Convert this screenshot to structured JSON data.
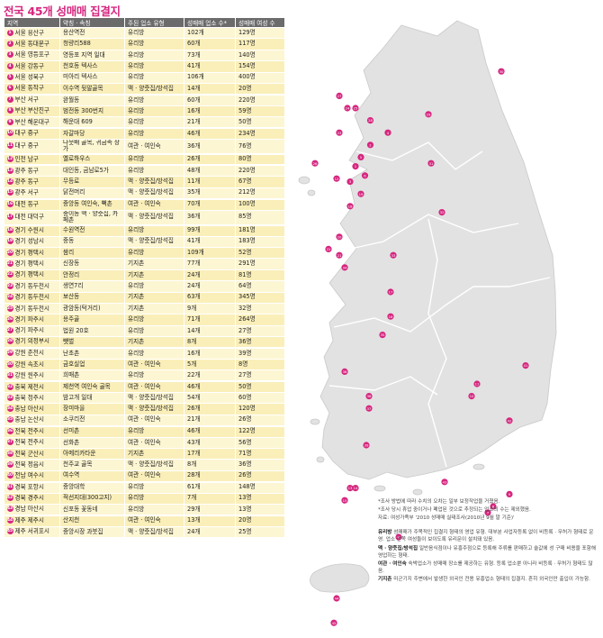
{
  "title": "전국 45개 성매매 집결지",
  "headers": [
    "지역",
    "약칭 · 속칭",
    "주된 업소 유형",
    "성매매 업소 수*",
    "성매매 여성 수"
  ],
  "rows": [
    [
      "1",
      "서울 용산구",
      "용산역전",
      "유리방",
      "102개",
      "129명"
    ],
    [
      "2",
      "서울 동대문구",
      "청량리588",
      "유리방",
      "60개",
      "117명"
    ],
    [
      "3",
      "서울 영등포구",
      "영등포 지역 일대",
      "유리방",
      "73개",
      "140명"
    ],
    [
      "4",
      "서울 강동구",
      "천호동 텍사스",
      "유리방",
      "41개",
      "154명"
    ],
    [
      "5",
      "서울 성북구",
      "미아리 텍사스",
      "유리방",
      "106개",
      "400명"
    ],
    [
      "6",
      "서울 동작구",
      "이수역 뒷말골목",
      "맥 · 양줏집/방석집",
      "14개",
      "20명"
    ],
    [
      "7",
      "부산 서구",
      "완월동",
      "유리방",
      "60개",
      "220명"
    ],
    [
      "8",
      "부산 부산진구",
      "범전동 300번지",
      "유리방",
      "16개",
      "59명"
    ],
    [
      "9",
      "부산 해운대구",
      "해운대 609",
      "유리방",
      "21개",
      "50명"
    ],
    [
      "10",
      "대구 중구",
      "자갈마당",
      "유리방",
      "46개",
      "234명"
    ],
    [
      "11",
      "대구 중구",
      "나뭇배 골목, 귀금속 상가",
      "여관 · 여인숙",
      "36개",
      "76명"
    ],
    [
      "12",
      "인천 남구",
      "옐로하우스",
      "유리방",
      "26개",
      "80명"
    ],
    [
      "13",
      "광주 동구",
      "대인동, 금남로5가",
      "유리방",
      "48개",
      "220명"
    ],
    [
      "14",
      "광주 동구",
      "무등로",
      "맥 · 양줏집/방석집",
      "11개",
      "67명"
    ],
    [
      "15",
      "광주 서구",
      "닭전머리",
      "맥 · 양줏집/방석집",
      "35개",
      "212명"
    ],
    [
      "16",
      "대전 동구",
      "중앙동 여인숙, 뻑촌",
      "여관 · 여인숙",
      "70개",
      "100명"
    ],
    [
      "17",
      "대전 대덕구",
      "중이동 맥 · 양줏집, 카페촌",
      "맥 · 양줏집/방석집",
      "36개",
      "85명"
    ],
    [
      "18",
      "경기 수원시",
      "수원역전",
      "유리방",
      "99개",
      "181명"
    ],
    [
      "19",
      "경기 성남시",
      "중동",
      "맥 · 양줏집/방석집",
      "41개",
      "183명"
    ],
    [
      "20",
      "경기 평택시",
      "쌈리",
      "유리방",
      "109개",
      "52명"
    ],
    [
      "21",
      "경기 평택시",
      "신장동",
      "기지촌",
      "77개",
      "291명"
    ],
    [
      "22",
      "경기 평택시",
      "안정리",
      "기지촌",
      "24개",
      "81명"
    ],
    [
      "23",
      "경기 동두천시",
      "생연7리",
      "유리방",
      "24개",
      "64명"
    ],
    [
      "24",
      "경기 동두천시",
      "보산동",
      "기지촌",
      "63개",
      "345명"
    ],
    [
      "25",
      "경기 동두천시",
      "광암동(턱거리)",
      "기지촌",
      "9개",
      "32명"
    ],
    [
      "26",
      "경기 파주시",
      "용주골",
      "유리방",
      "71개",
      "264명"
    ],
    [
      "27",
      "경기 파주시",
      "법원 20호",
      "유리방",
      "14개",
      "27명"
    ],
    [
      "28",
      "경기 의정부시",
      "뺏벌",
      "기지촌",
      "8개",
      "36명"
    ],
    [
      "29",
      "강원 춘천시",
      "난초촌",
      "유리방",
      "16개",
      "39명"
    ],
    [
      "30",
      "강원 속초시",
      "금호실업",
      "여관 · 여인숙",
      "5개",
      "8명"
    ],
    [
      "31",
      "강원 원주시",
      "희매촌",
      "유리방",
      "22개",
      "27명"
    ],
    [
      "32",
      "충북 제천시",
      "제천역 여인숙 골목",
      "여관 · 여인숙",
      "46개",
      "50명"
    ],
    [
      "33",
      "충북 청주시",
      "밤고개 일대",
      "맥 · 양줏집/방석집",
      "54개",
      "60명"
    ],
    [
      "34",
      "충남 아산시",
      "장미마을",
      "맥 · 양줏집/방석집",
      "26개",
      "120명"
    ],
    [
      "35",
      "충남 논산시",
      "소쿠리전",
      "여관 · 여인숙",
      "21개",
      "26명"
    ],
    [
      "36",
      "전북 전주시",
      "선미촌",
      "유리방",
      "46개",
      "122명"
    ],
    [
      "37",
      "전북 전주시",
      "선화촌",
      "여관 · 여인숙",
      "43개",
      "56명"
    ],
    [
      "38",
      "전북 군산시",
      "아메리카타운",
      "기지촌",
      "17개",
      "71명"
    ],
    [
      "39",
      "전북 정읍시",
      "천주교 골목",
      "맥 · 양줏집/방석집",
      "8개",
      "36명"
    ],
    [
      "40",
      "전남 여수시",
      "여수역",
      "여관 · 여인숙",
      "28개",
      "26명"
    ],
    [
      "41",
      "경북 포항시",
      "중앙대학",
      "유리방",
      "61개",
      "148명"
    ],
    [
      "42",
      "경북 경주시",
      "적선지대(300고지)",
      "유리방",
      "7개",
      "13명"
    ],
    [
      "43",
      "경남 마산시",
      "신포동 꽃동네",
      "유리방",
      "29개",
      "13명"
    ],
    [
      "44",
      "제주 제주시",
      "산지천",
      "여관 · 여인숙",
      "13개",
      "20명"
    ],
    [
      "45",
      "제주 서귀포시",
      "중앙시장 과붓집",
      "맥 · 양줏집/방석집",
      "24개",
      "25명"
    ]
  ],
  "group_starts": [
    6,
    9,
    11,
    12,
    15,
    17,
    28,
    31,
    35,
    40,
    43
  ],
  "wrap_rows": [
    10,
    16
  ],
  "markers": [
    {
      "n": "28",
      "x": 0.285,
      "y": 0.17
    },
    {
      "n": "2",
      "x": 0.285,
      "y": 0.21
    },
    {
      "n": "4",
      "x": 0.35,
      "y": 0.19
    },
    {
      "n": "5",
      "x": 0.25,
      "y": 0.23
    },
    {
      "n": "1",
      "x": 0.23,
      "y": 0.245
    },
    {
      "n": "3",
      "x": 0.21,
      "y": 0.27
    },
    {
      "n": "6",
      "x": 0.265,
      "y": 0.26
    },
    {
      "n": "19",
      "x": 0.25,
      "y": 0.29
    },
    {
      "n": "12",
      "x": 0.16,
      "y": 0.265
    },
    {
      "n": "23",
      "x": 0.17,
      "y": 0.19
    },
    {
      "n": "24",
      "x": 0.2,
      "y": 0.15
    },
    {
      "n": "25",
      "x": 0.23,
      "y": 0.15
    },
    {
      "n": "26",
      "x": 0.08,
      "y": 0.24
    },
    {
      "n": "27",
      "x": 0.17,
      "y": 0.13
    },
    {
      "n": "18",
      "x": 0.21,
      "y": 0.31
    },
    {
      "n": "20",
      "x": 0.17,
      "y": 0.36
    },
    {
      "n": "21",
      "x": 0.17,
      "y": 0.39
    },
    {
      "n": "22",
      "x": 0.13,
      "y": 0.38
    },
    {
      "n": "29",
      "x": 0.5,
      "y": 0.16
    },
    {
      "n": "30",
      "x": 0.77,
      "y": 0.09
    },
    {
      "n": "31",
      "x": 0.51,
      "y": 0.24
    },
    {
      "n": "32",
      "x": 0.55,
      "y": 0.32
    },
    {
      "n": "33",
      "x": 0.37,
      "y": 0.39
    },
    {
      "n": "34",
      "x": 0.19,
      "y": 0.41
    },
    {
      "n": "16",
      "x": 0.36,
      "y": 0.49
    },
    {
      "n": "17",
      "x": 0.36,
      "y": 0.45
    },
    {
      "n": "35",
      "x": 0.33,
      "y": 0.52
    },
    {
      "n": "36",
      "x": 0.28,
      "y": 0.62
    },
    {
      "n": "37",
      "x": 0.28,
      "y": 0.64
    },
    {
      "n": "38",
      "x": 0.19,
      "y": 0.58
    },
    {
      "n": "39",
      "x": 0.27,
      "y": 0.7
    },
    {
      "n": "13",
      "x": 0.21,
      "y": 0.77
    },
    {
      "n": "14",
      "x": 0.23,
      "y": 0.77
    },
    {
      "n": "15",
      "x": 0.19,
      "y": 0.79
    },
    {
      "n": "40",
      "x": 0.39,
      "y": 0.85
    },
    {
      "n": "10",
      "x": 0.66,
      "y": 0.62
    },
    {
      "n": "11",
      "x": 0.68,
      "y": 0.6
    },
    {
      "n": "41",
      "x": 0.86,
      "y": 0.57
    },
    {
      "n": "42",
      "x": 0.8,
      "y": 0.66
    },
    {
      "n": "43",
      "x": 0.56,
      "y": 0.76
    },
    {
      "n": "7",
      "x": 0.72,
      "y": 0.81
    },
    {
      "n": "8",
      "x": 0.74,
      "y": 0.8
    },
    {
      "n": "9",
      "x": 0.8,
      "y": 0.78
    },
    {
      "n": "44",
      "x": 0.16,
      "y": 0.95
    },
    {
      "n": "45",
      "x": 0.15,
      "y": 0.99
    }
  ],
  "notes": [
    "*조사 방법에 따라 수치의 오차는 일부 보정작업을 거쳤음.",
    "*조사 당시 휴업 중이거나 폐업된 것으로 추정되는 업소의 수는 제외했음.",
    "자료: 여성가족부 '2010 성매매 실태조사(2010년 9월 말 기준)'"
  ],
  "definitions": [
    {
      "term": "유리방",
      "text": "성매매가 주목적인 집결지 형태의 영업 유형. 대부분 사업자등록 없이 비등록 · 무허가 형태로 운영. 업소 안쪽 여성들이 보이도록 유리문이 설치돼 있음."
    },
    {
      "term": "맥 · 양줏집/방석집",
      "text": "일반음식점이나 유흥주점으로 등록해 주류를 판매하고 술값에 성 구매 비용을 포함해 영업하는 형태."
    },
    {
      "term": "여관 · 여인숙",
      "text": "숙박업소가 성매매 장소를 제공하는 유형. 등록 업소뿐 아니라 비등록 · 무허가 형태도 많음."
    },
    {
      "term": "기지촌",
      "text": "미군기지 주변에서 발생한 외국인 전용 유흥업소 형태의 집결지. 흔히 외국인만 출입이 가능함."
    }
  ]
}
